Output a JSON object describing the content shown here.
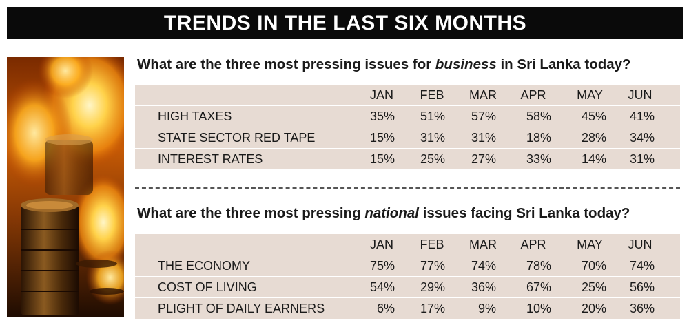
{
  "banner": {
    "title": "TRENDS IN THE LAST SIX MONTHS"
  },
  "colors": {
    "banner_bg": "#0a0a0a",
    "row_shade": "#e7dbd3",
    "text": "#1a1a1a"
  },
  "image": {
    "icon": "fire-coins-photo"
  },
  "chart_data": [
    {
      "type": "table",
      "title_parts": [
        "What are the three most pressing issues for ",
        "business",
        " in Sri Lanka today?"
      ],
      "columns": [
        "JAN",
        "FEB",
        "MAR",
        "APR",
        "MAY",
        "JUN"
      ],
      "rows": [
        {
          "label": "HIGH TAXES",
          "values": [
            "35%",
            "51%",
            "57%",
            "58%",
            "45%",
            "41%"
          ]
        },
        {
          "label": "STATE SECTOR RED TAPE",
          "values": [
            "15%",
            "31%",
            "31%",
            "18%",
            "28%",
            "34%"
          ]
        },
        {
          "label": "INTEREST RATES",
          "values": [
            "15%",
            "25%",
            "27%",
            "33%",
            "14%",
            "31%"
          ]
        }
      ]
    },
    {
      "type": "table",
      "title_parts": [
        "What are the three most pressing ",
        "national",
        " issues facing Sri Lanka today?"
      ],
      "columns": [
        "JAN",
        "FEB",
        "MAR",
        "APR",
        "MAY",
        "JUN"
      ],
      "rows": [
        {
          "label": "THE ECONOMY",
          "values": [
            "75%",
            "77%",
            "74%",
            "78%",
            "70%",
            "74%"
          ]
        },
        {
          "label": "COST OF LIVING",
          "values": [
            "54%",
            "29%",
            "36%",
            "67%",
            "25%",
            "56%"
          ]
        },
        {
          "label": "PLIGHT OF DAILY EARNERS",
          "values": [
            "6%",
            "17%",
            "9%",
            "10%",
            "20%",
            "36%"
          ]
        }
      ]
    }
  ]
}
